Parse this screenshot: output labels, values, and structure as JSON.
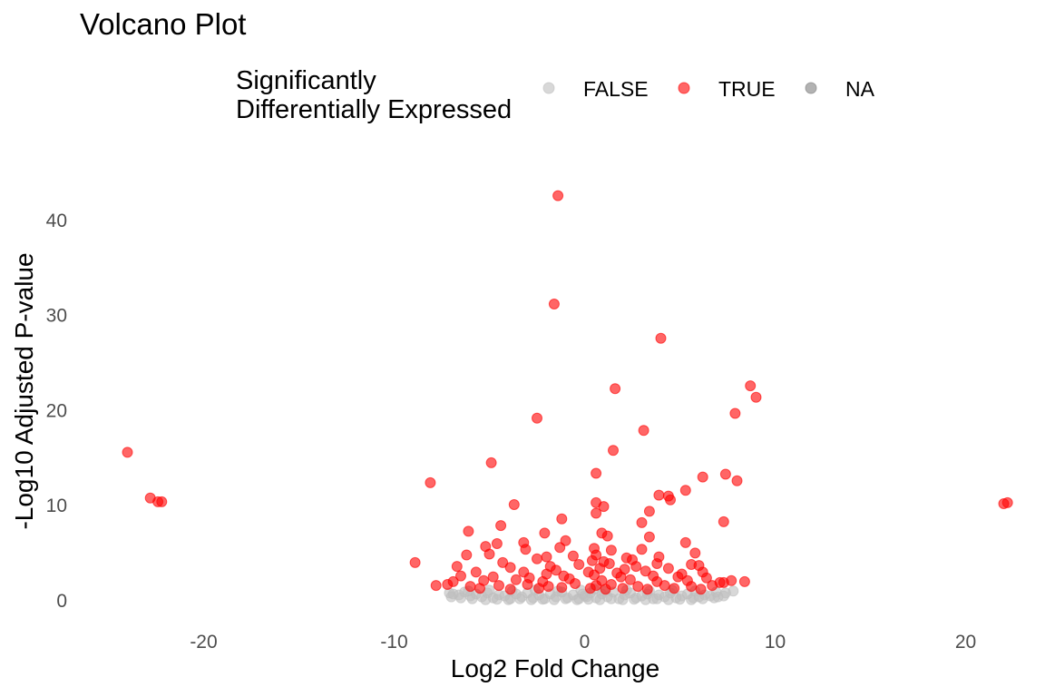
{
  "chart_data": {
    "type": "scatter",
    "title": "Volcano Plot",
    "xlabel": "Log2 Fold Change",
    "ylabel": "-Log10 Adjusted P-value",
    "xlim": [
      -26.5,
      23.5
    ],
    "ylim": [
      -2.5,
      46
    ],
    "x_ticks": [
      -20,
      -10,
      0,
      10,
      20
    ],
    "x_tick_labels": [
      "-20",
      "-10",
      "0",
      "10",
      "20"
    ],
    "y_ticks": [
      0,
      10,
      20,
      30,
      40
    ],
    "y_tick_labels": [
      "0",
      "10",
      "20",
      "30",
      "40"
    ],
    "grid": false,
    "legend": {
      "title_lines": [
        "Significantly",
        "Differentially Expressed"
      ],
      "position": "top",
      "entries": [
        "FALSE",
        "TRUE",
        "NA"
      ]
    },
    "series": [
      {
        "name": "FALSE",
        "color": "#bebebe",
        "points": [
          [
            -7.1,
            0.8
          ],
          [
            -6.9,
            0.7
          ],
          [
            -6.6,
            0.6
          ],
          [
            -6.3,
            0.9
          ],
          [
            -6.0,
            0.5
          ],
          [
            -5.7,
            0.7
          ],
          [
            -5.4,
            0.4
          ],
          [
            -5.1,
            0.8
          ],
          [
            -4.8,
            0.3
          ],
          [
            -4.5,
            0.6
          ],
          [
            -4.2,
            0.5
          ],
          [
            -3.9,
            0.2
          ],
          [
            -3.6,
            0.7
          ],
          [
            -3.3,
            0.4
          ],
          [
            -3.0,
            0.8
          ],
          [
            -2.7,
            0.3
          ],
          [
            -2.4,
            0.6
          ],
          [
            -2.1,
            0.2
          ],
          [
            -1.8,
            0.7
          ],
          [
            -1.5,
            0.4
          ],
          [
            -1.2,
            0.9
          ],
          [
            -0.9,
            0.3
          ],
          [
            -0.6,
            0.6
          ],
          [
            -0.3,
            0.2
          ],
          [
            0.0,
            0.5
          ],
          [
            0.3,
            0.8
          ],
          [
            0.6,
            0.3
          ],
          [
            0.9,
            0.7
          ],
          [
            1.2,
            0.4
          ],
          [
            1.5,
            0.9
          ],
          [
            1.8,
            0.2
          ],
          [
            2.1,
            0.6
          ],
          [
            2.4,
            0.8
          ],
          [
            2.7,
            0.3
          ],
          [
            3.0,
            0.5
          ],
          [
            3.3,
            0.7
          ],
          [
            3.6,
            0.2
          ],
          [
            3.9,
            0.6
          ],
          [
            4.2,
            0.4
          ],
          [
            4.5,
            0.8
          ],
          [
            4.8,
            0.3
          ],
          [
            5.1,
            0.5
          ],
          [
            5.4,
            0.7
          ],
          [
            5.7,
            0.3
          ],
          [
            6.0,
            0.4
          ],
          [
            6.3,
            0.6
          ],
          [
            6.6,
            0.5
          ],
          [
            7.0,
            0.4
          ],
          [
            7.4,
            0.8
          ],
          [
            7.8,
            1.0
          ],
          [
            -6.5,
            0.3
          ],
          [
            -5.9,
            0.2
          ],
          [
            -5.2,
            0.1
          ],
          [
            -4.6,
            0.15
          ],
          [
            -4.0,
            0.1
          ],
          [
            -3.4,
            0.2
          ],
          [
            -2.8,
            0.1
          ],
          [
            -2.2,
            0.15
          ],
          [
            -1.6,
            0.1
          ],
          [
            -1.0,
            0.2
          ],
          [
            -0.4,
            0.1
          ],
          [
            0.2,
            0.15
          ],
          [
            0.8,
            0.1
          ],
          [
            1.4,
            0.2
          ],
          [
            2.0,
            0.1
          ],
          [
            2.6,
            0.15
          ],
          [
            3.2,
            0.1
          ],
          [
            3.8,
            0.2
          ],
          [
            4.4,
            0.1
          ],
          [
            5.0,
            0.15
          ],
          [
            5.6,
            0.1
          ],
          [
            6.2,
            0.2
          ],
          [
            6.8,
            0.3
          ],
          [
            -6.1,
            1.0
          ],
          [
            -5.0,
            1.1
          ],
          [
            -3.8,
            1.0
          ],
          [
            -2.6,
            1.1
          ],
          [
            -1.4,
            1.0
          ],
          [
            -0.2,
            1.1
          ],
          [
            1.0,
            1.0
          ],
          [
            2.2,
            1.1
          ],
          [
            3.4,
            1.0
          ],
          [
            4.6,
            1.1
          ],
          [
            5.8,
            1.0
          ],
          [
            7.3,
            0.5
          ],
          [
            -7.0,
            0.4
          ],
          [
            6.9,
            0.9
          ],
          [
            0.1,
            0.4
          ],
          [
            -0.1,
            0.7
          ],
          [
            0.5,
            1.2
          ]
        ]
      },
      {
        "name": "TRUE",
        "color": "#ff0000",
        "points": [
          [
            -1.4,
            42.6
          ],
          [
            -1.6,
            31.2
          ],
          [
            4.0,
            27.6
          ],
          [
            8.7,
            22.6
          ],
          [
            9.0,
            21.4
          ],
          [
            1.6,
            22.3
          ],
          [
            -2.5,
            19.2
          ],
          [
            7.9,
            19.7
          ],
          [
            3.1,
            17.9
          ],
          [
            1.5,
            15.8
          ],
          [
            -24.0,
            15.6
          ],
          [
            -4.9,
            14.5
          ],
          [
            -8.1,
            12.4
          ],
          [
            0.6,
            13.4
          ],
          [
            7.4,
            13.3
          ],
          [
            6.2,
            13.0
          ],
          [
            8.0,
            12.6
          ],
          [
            5.3,
            11.6
          ],
          [
            3.9,
            11.1
          ],
          [
            4.4,
            11.0
          ],
          [
            4.5,
            10.6
          ],
          [
            -22.8,
            10.8
          ],
          [
            -22.4,
            10.4
          ],
          [
            -22.2,
            10.4
          ],
          [
            22.0,
            10.2
          ],
          [
            22.2,
            10.3
          ],
          [
            -3.7,
            10.1
          ],
          [
            0.6,
            10.3
          ],
          [
            1.0,
            9.9
          ],
          [
            3.4,
            9.4
          ],
          [
            0.6,
            9.2
          ],
          [
            -1.2,
            8.6
          ],
          [
            3.0,
            8.2
          ],
          [
            7.3,
            8.3
          ],
          [
            -4.4,
            7.9
          ],
          [
            -6.1,
            7.3
          ],
          [
            0.9,
            7.1
          ],
          [
            1.2,
            6.8
          ],
          [
            3.4,
            6.7
          ],
          [
            -2.1,
            7.1
          ],
          [
            -1.0,
            6.3
          ],
          [
            5.3,
            6.1
          ],
          [
            -3.2,
            6.1
          ],
          [
            -4.6,
            6.0
          ],
          [
            -5.2,
            5.7
          ],
          [
            -3.1,
            5.4
          ],
          [
            -1.3,
            5.6
          ],
          [
            0.5,
            5.5
          ],
          [
            1.4,
            5.3
          ],
          [
            3.0,
            5.4
          ],
          [
            5.8,
            5.0
          ],
          [
            -5.0,
            4.9
          ],
          [
            -6.2,
            4.8
          ],
          [
            -2.0,
            4.6
          ],
          [
            -0.6,
            4.7
          ],
          [
            0.6,
            4.8
          ],
          [
            2.2,
            4.5
          ],
          [
            3.9,
            4.6
          ],
          [
            -8.9,
            4.0
          ],
          [
            -4.3,
            4.0
          ],
          [
            -2.5,
            4.4
          ],
          [
            1.0,
            4.1
          ],
          [
            2.5,
            4.3
          ],
          [
            3.8,
            3.9
          ],
          [
            5.6,
            3.8
          ],
          [
            6.0,
            3.7
          ],
          [
            -6.7,
            3.6
          ],
          [
            -3.9,
            3.5
          ],
          [
            -1.8,
            3.6
          ],
          [
            0.8,
            3.4
          ],
          [
            2.1,
            3.3
          ],
          [
            4.4,
            3.4
          ],
          [
            6.2,
            3.0
          ],
          [
            -5.7,
            3.0
          ],
          [
            -3.2,
            3.0
          ],
          [
            -1.5,
            3.2
          ],
          [
            0.2,
            3.0
          ],
          [
            1.7,
            2.9
          ],
          [
            3.2,
            3.1
          ],
          [
            5.1,
            2.8
          ],
          [
            -6.5,
            2.6
          ],
          [
            -4.8,
            2.5
          ],
          [
            -2.9,
            2.4
          ],
          [
            -1.1,
            2.6
          ],
          [
            0.5,
            2.7
          ],
          [
            1.9,
            2.5
          ],
          [
            3.6,
            2.6
          ],
          [
            4.9,
            2.5
          ],
          [
            6.4,
            2.4
          ],
          [
            7.7,
            2.1
          ],
          [
            -6.9,
            2.0
          ],
          [
            -5.3,
            2.1
          ],
          [
            -3.6,
            2.2
          ],
          [
            -2.2,
            2.0
          ],
          [
            -0.8,
            2.3
          ],
          [
            0.9,
            2.1
          ],
          [
            2.4,
            2.2
          ],
          [
            3.8,
            2.0
          ],
          [
            5.4,
            2.1
          ],
          [
            8.4,
            2.0
          ],
          [
            -7.8,
            1.6
          ],
          [
            -7.2,
            1.7
          ],
          [
            -6.0,
            1.5
          ],
          [
            -4.5,
            1.6
          ],
          [
            -3.0,
            1.7
          ],
          [
            -1.9,
            1.5
          ],
          [
            -0.5,
            1.8
          ],
          [
            0.6,
            1.6
          ],
          [
            1.4,
            1.7
          ],
          [
            2.8,
            1.5
          ],
          [
            4.2,
            1.6
          ],
          [
            5.6,
            1.5
          ],
          [
            6.7,
            1.6
          ],
          [
            7.3,
            1.9
          ],
          [
            7.1,
            1.9
          ],
          [
            -5.5,
            1.3
          ],
          [
            -3.9,
            1.2
          ],
          [
            -2.4,
            1.3
          ],
          [
            -1.2,
            1.4
          ],
          [
            0.3,
            1.3
          ],
          [
            1.1,
            1.2
          ],
          [
            2.0,
            1.3
          ],
          [
            3.3,
            1.2
          ],
          [
            4.7,
            1.3
          ],
          [
            6.1,
            1.2
          ],
          [
            -2.0,
            2.8
          ],
          [
            -0.3,
            3.8
          ],
          [
            0.4,
            4.2
          ],
          [
            1.3,
            3.9
          ],
          [
            2.7,
            3.6
          ]
        ]
      },
      {
        "name": "NA",
        "color": "#7f7f7f",
        "points": []
      }
    ]
  }
}
